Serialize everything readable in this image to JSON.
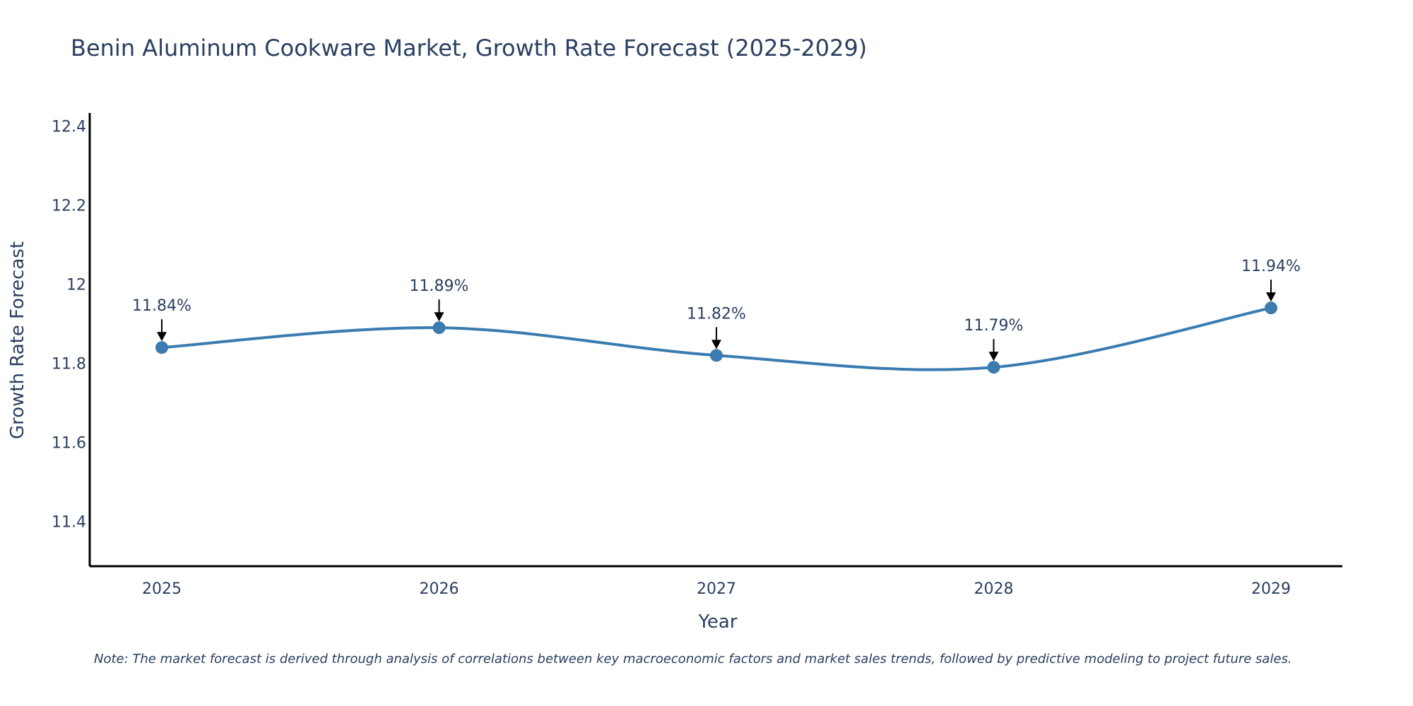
{
  "chart_data": {
    "type": "line",
    "title": "Benin Aluminum Cookware Market, Growth Rate Forecast (2025-2029)",
    "xlabel": "Year",
    "ylabel": "Growth Rate Forecast",
    "categories": [
      "2025",
      "2026",
      "2027",
      "2028",
      "2029"
    ],
    "values": [
      11.84,
      11.89,
      11.82,
      11.79,
      11.94
    ],
    "data_labels": [
      "11.84%",
      "11.89%",
      "11.82%",
      "11.79%",
      "11.94%"
    ],
    "yticks": [
      11.4,
      11.6,
      11.8,
      12,
      12.2,
      12.4
    ],
    "ytick_labels": [
      "11.4",
      "11.6",
      "11.8",
      "12",
      "12.2",
      "12.4"
    ],
    "ylim": [
      11.287,
      12.433
    ],
    "grid": false,
    "line_shape": "spline",
    "series_color": "#3a7cb0",
    "annotation_arrow_color": "#000000",
    "note": "Note: The market forecast is derived through analysis of correlations between key macroeconomic factors and market sales trends, followed by predictive modeling to project future sales."
  }
}
